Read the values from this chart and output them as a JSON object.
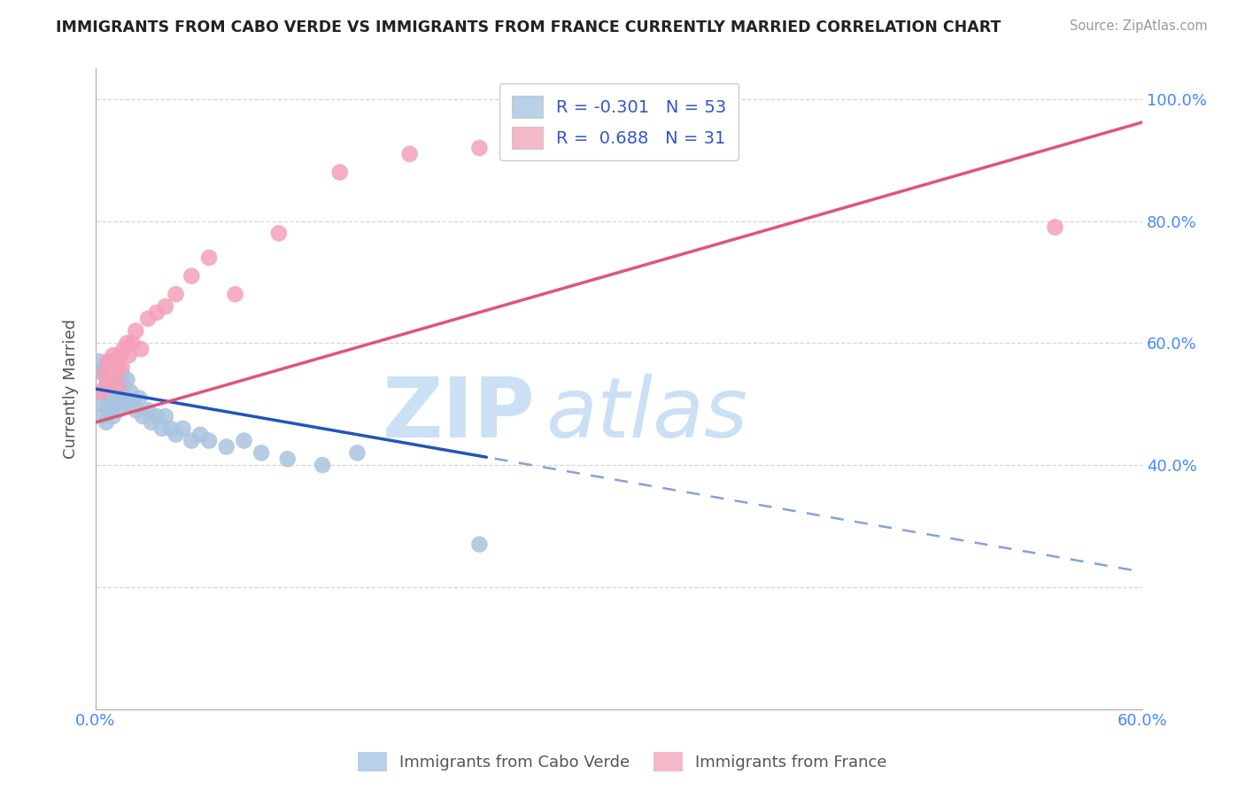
{
  "title": "IMMIGRANTS FROM CABO VERDE VS IMMIGRANTS FROM FRANCE CURRENTLY MARRIED CORRELATION CHART",
  "source": "Source: ZipAtlas.com",
  "ylabel": "Currently Married",
  "watermark_zip": "ZIP",
  "watermark_atlas": "atlas",
  "x_min": 0.0,
  "x_max": 0.6,
  "y_min": 0.0,
  "y_max": 1.05,
  "x_ticks": [
    0.0,
    0.1,
    0.2,
    0.3,
    0.4,
    0.5,
    0.6
  ],
  "x_tick_labels": [
    "0.0%",
    "",
    "",
    "",
    "",
    "",
    "60.0%"
  ],
  "y_ticks": [
    0.0,
    0.2,
    0.4,
    0.6,
    0.8,
    1.0
  ],
  "y_tick_labels_right": [
    "",
    "",
    "40.0%",
    "60.0%",
    "80.0%",
    "100.0%"
  ],
  "cabo_verde_R": -0.301,
  "cabo_verde_N": 53,
  "france_R": 0.688,
  "france_N": 31,
  "cabo_verde_color": "#a8c4e0",
  "france_color": "#f4a0b8",
  "cabo_verde_line_color": "#2255bb",
  "france_line_color": "#e05575",
  "cabo_verde_legend_color": "#b8d0e8",
  "france_legend_color": "#f4b8c8",
  "background_color": "#ffffff",
  "grid_color": "#cccccc",
  "cabo_verde_x": [
    0.002,
    0.003,
    0.004,
    0.004,
    0.005,
    0.005,
    0.006,
    0.006,
    0.007,
    0.007,
    0.008,
    0.008,
    0.009,
    0.009,
    0.01,
    0.01,
    0.01,
    0.011,
    0.011,
    0.012,
    0.012,
    0.013,
    0.013,
    0.014,
    0.015,
    0.015,
    0.016,
    0.017,
    0.018,
    0.019,
    0.02,
    0.022,
    0.023,
    0.025,
    0.027,
    0.03,
    0.032,
    0.035,
    0.038,
    0.04,
    0.043,
    0.046,
    0.05,
    0.055,
    0.06,
    0.065,
    0.075,
    0.085,
    0.095,
    0.11,
    0.13,
    0.15,
    0.22
  ],
  "cabo_verde_y": [
    0.57,
    0.5,
    0.55,
    0.48,
    0.56,
    0.52,
    0.53,
    0.47,
    0.55,
    0.5,
    0.56,
    0.49,
    0.54,
    0.51,
    0.57,
    0.53,
    0.48,
    0.55,
    0.5,
    0.56,
    0.52,
    0.54,
    0.49,
    0.53,
    0.55,
    0.5,
    0.53,
    0.51,
    0.54,
    0.5,
    0.52,
    0.5,
    0.49,
    0.51,
    0.48,
    0.49,
    0.47,
    0.48,
    0.46,
    0.48,
    0.46,
    0.45,
    0.46,
    0.44,
    0.45,
    0.44,
    0.43,
    0.44,
    0.42,
    0.41,
    0.4,
    0.42,
    0.27
  ],
  "france_x": [
    0.003,
    0.005,
    0.006,
    0.007,
    0.008,
    0.009,
    0.01,
    0.011,
    0.012,
    0.013,
    0.014,
    0.015,
    0.016,
    0.018,
    0.019,
    0.021,
    0.023,
    0.026,
    0.03,
    0.035,
    0.04,
    0.046,
    0.055,
    0.065,
    0.08,
    0.105,
    0.14,
    0.18,
    0.22,
    0.31,
    0.55
  ],
  "france_y": [
    0.52,
    0.55,
    0.53,
    0.57,
    0.54,
    0.56,
    0.58,
    0.55,
    0.57,
    0.53,
    0.58,
    0.56,
    0.59,
    0.6,
    0.58,
    0.6,
    0.62,
    0.59,
    0.64,
    0.65,
    0.66,
    0.68,
    0.71,
    0.74,
    0.68,
    0.78,
    0.88,
    0.91,
    0.92,
    0.93,
    0.79
  ],
  "cabo_verde_line_intercept": 0.525,
  "cabo_verde_line_slope": -0.5,
  "france_line_intercept": 0.47,
  "france_line_slope": 0.82
}
